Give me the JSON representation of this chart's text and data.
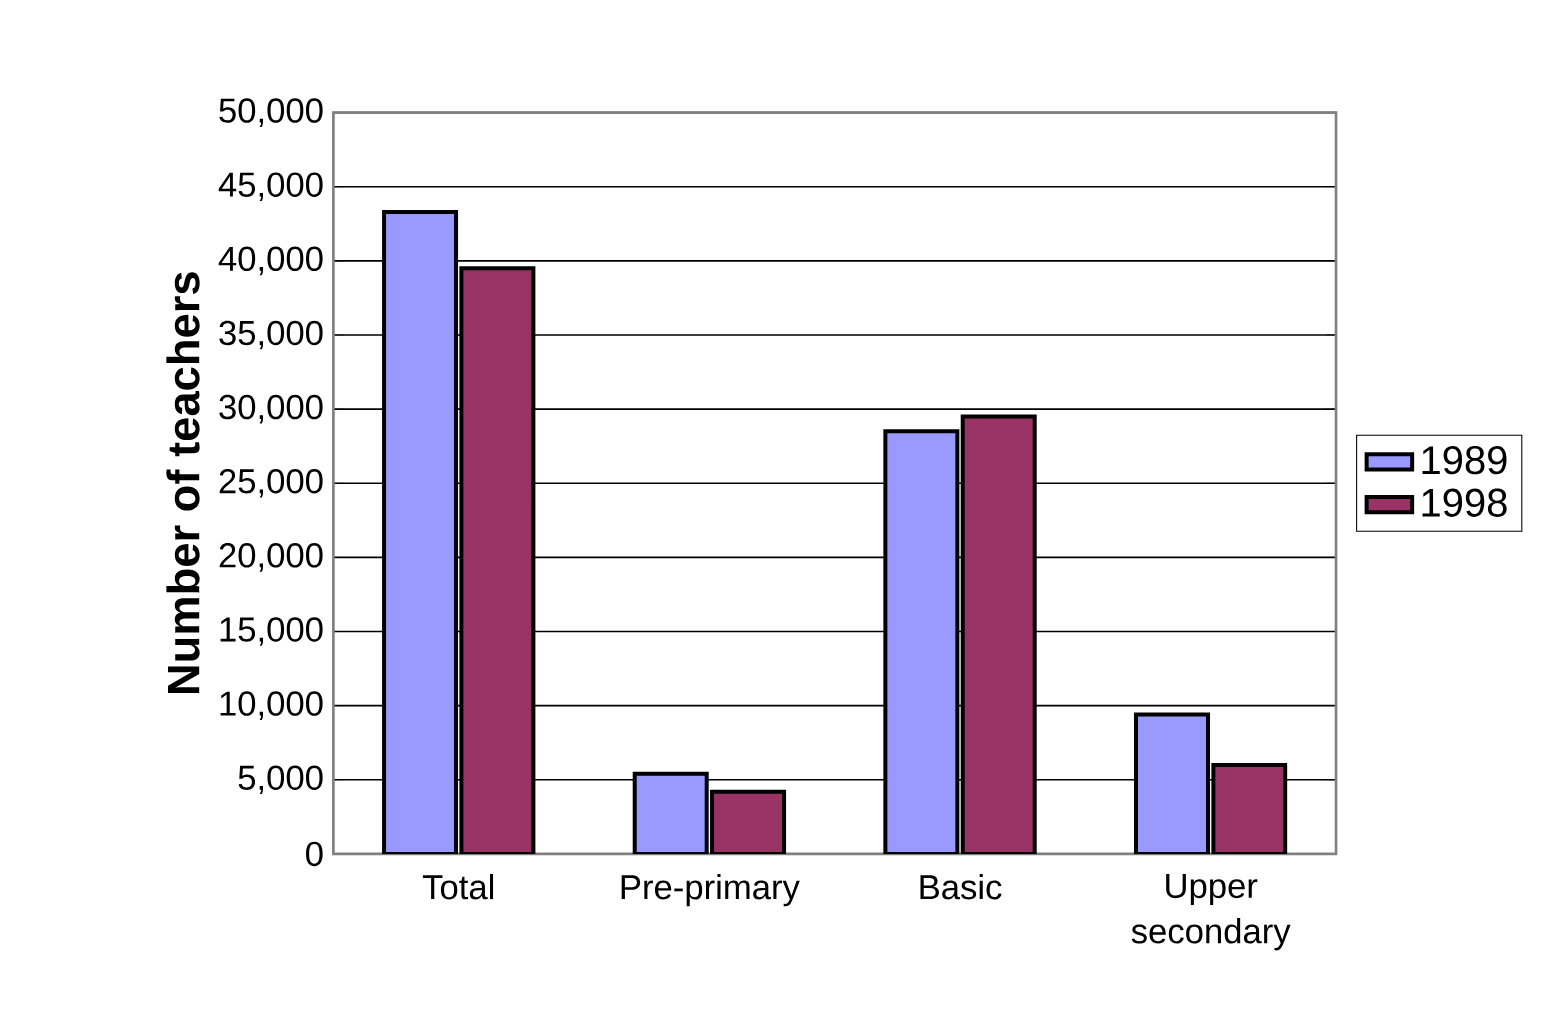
{
  "chart_data": {
    "type": "bar",
    "ylabel": "Number of teachers",
    "categories": [
      "Total",
      "Pre-primary",
      "Basic",
      "Upper secondary"
    ],
    "series": [
      {
        "name": "1989",
        "color": "#9999ff",
        "values": [
          43300,
          5400,
          28500,
          9400
        ]
      },
      {
        "name": "1998",
        "color": "#993366",
        "values": [
          39500,
          4200,
          29500,
          6000
        ]
      }
    ],
    "ylim": [
      0,
      50000
    ],
    "yticks": [
      {
        "value": 0,
        "label": "0"
      },
      {
        "value": 5000,
        "label": "5,000"
      },
      {
        "value": 10000,
        "label": "10,000"
      },
      {
        "value": 15000,
        "label": "15,000"
      },
      {
        "value": 20000,
        "label": "20,000"
      },
      {
        "value": 25000,
        "label": "25,000"
      },
      {
        "value": 30000,
        "label": "30,000"
      },
      {
        "value": 35000,
        "label": "35,000"
      },
      {
        "value": 40000,
        "label": "40,000"
      },
      {
        "value": 45000,
        "label": "45,000"
      },
      {
        "value": 50000,
        "label": "50,000"
      }
    ],
    "grid": "y",
    "legend": "right"
  }
}
